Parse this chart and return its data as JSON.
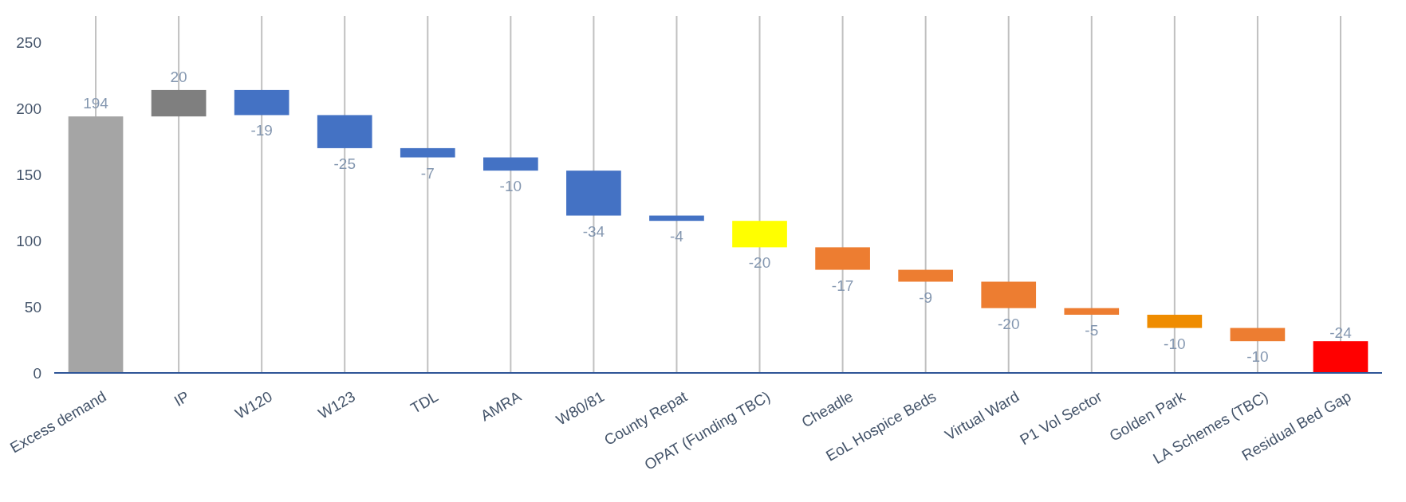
{
  "chart_data": {
    "type": "bar",
    "categories": [
      "Excess demand",
      "IP",
      "W120",
      "W123",
      "TDL",
      "AMRA",
      "W80/81",
      "County Repat",
      "OPAT (Funding TBC)",
      "Cheadle",
      "EoL Hospice Beds",
      "Virtual Ward",
      "P1 Vol Sector",
      "Golden Park",
      "LA Schemes (TBC)",
      "Residual Bed Gap"
    ],
    "values": [
      194,
      20,
      -19,
      -25,
      -7,
      -10,
      -34,
      -4,
      -20,
      -17,
      -9,
      -20,
      -5,
      -10,
      -10,
      -24
    ],
    "base": [
      0,
      194,
      214,
      195,
      170,
      163,
      153,
      119,
      115,
      95,
      78,
      69,
      49,
      44,
      34,
      24
    ],
    "colors": [
      "#a5a5a5",
      "#7f7f7f",
      "#4472c4",
      "#4472c4",
      "#4472c4",
      "#4472c4",
      "#4472c4",
      "#4472c4",
      "#ffff00",
      "#ed7d31",
      "#ed7d31",
      "#ed7d31",
      "#ed7d31",
      "#ef8c00",
      "#ed7d31",
      "#ff0000"
    ],
    "data_labels": true,
    "grid": "x",
    "ylim": [
      0,
      270
    ],
    "yticks": [
      0,
      50,
      100,
      150,
      200,
      250
    ]
  }
}
